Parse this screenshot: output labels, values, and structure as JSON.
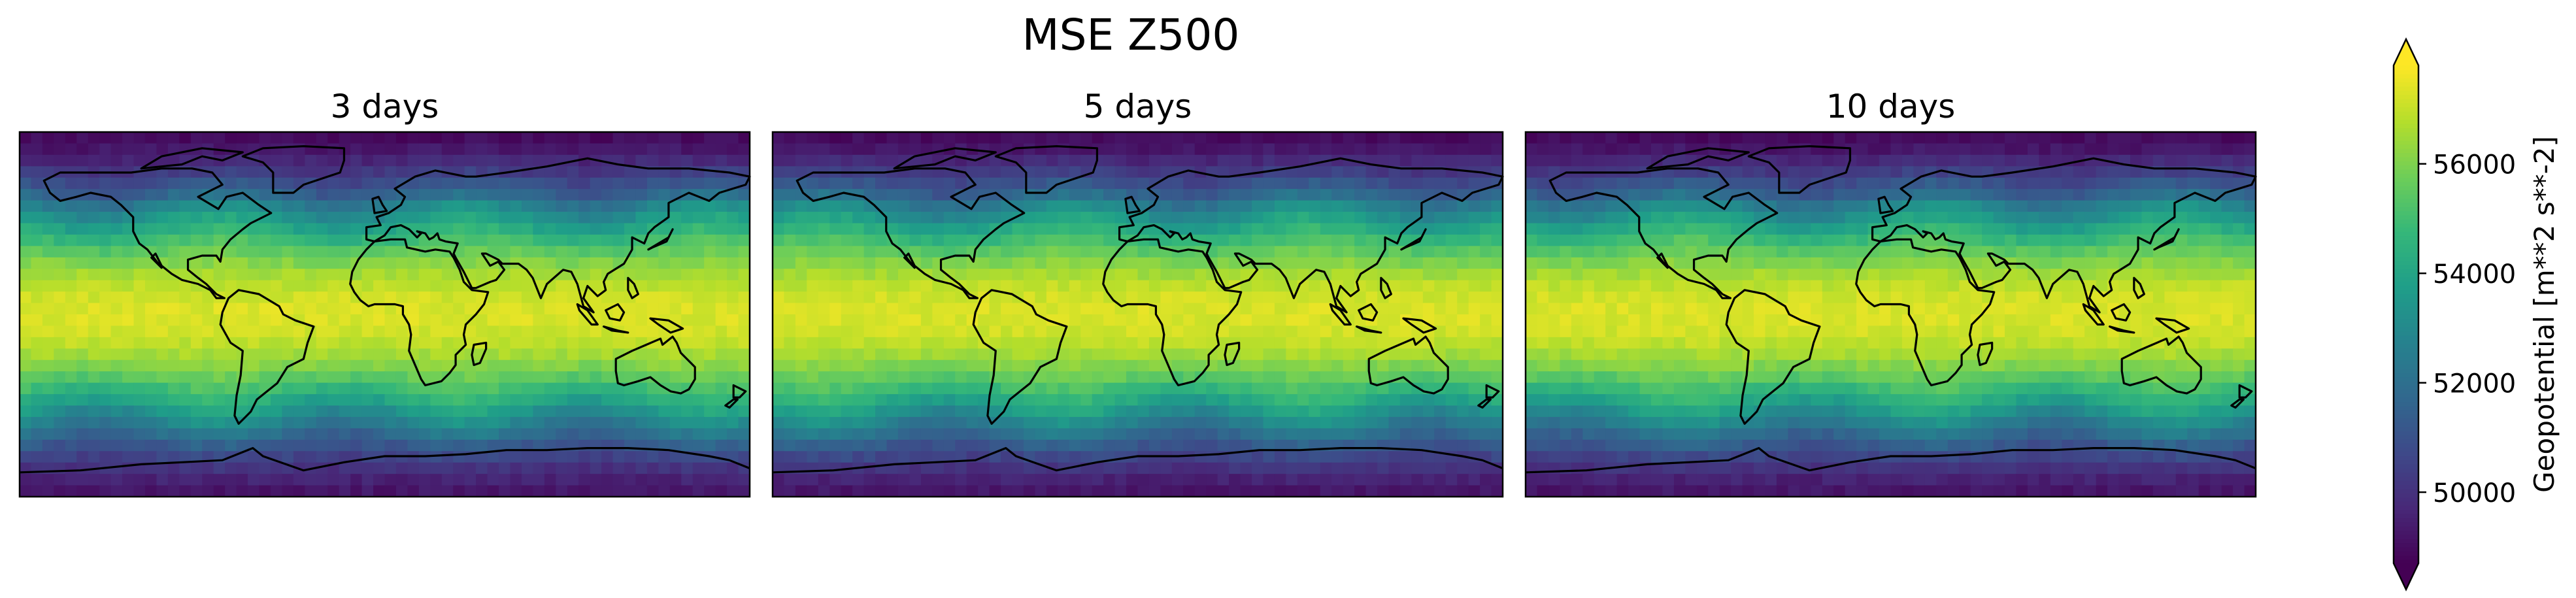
{
  "figure": {
    "title": "MSE Z500"
  },
  "chart_data": {
    "type": "heatmap",
    "title": "MSE Z500",
    "panels": [
      {
        "title": "3 days",
        "lead_time_days": 3,
        "seed": 3
      },
      {
        "title": "5 days",
        "lead_time_days": 5,
        "seed": 5
      },
      {
        "title": "10 days",
        "lead_time_days": 10,
        "seed": 10
      }
    ],
    "colormap": "viridis",
    "colorbar": {
      "label": "Geopotential [m**2 s**-2]",
      "ticks": [
        50000,
        52000,
        54000,
        56000
      ],
      "tick_labels": [
        "50000",
        "52000",
        "54000",
        "56000"
      ],
      "vmin": 48700,
      "vmax": 57800,
      "extend": "both"
    },
    "field_description": {
      "equator_value": 57300,
      "pole_value": 49200,
      "grid_lon": 64,
      "grid_lat": 32
    },
    "coastlines": true,
    "grid": false
  }
}
